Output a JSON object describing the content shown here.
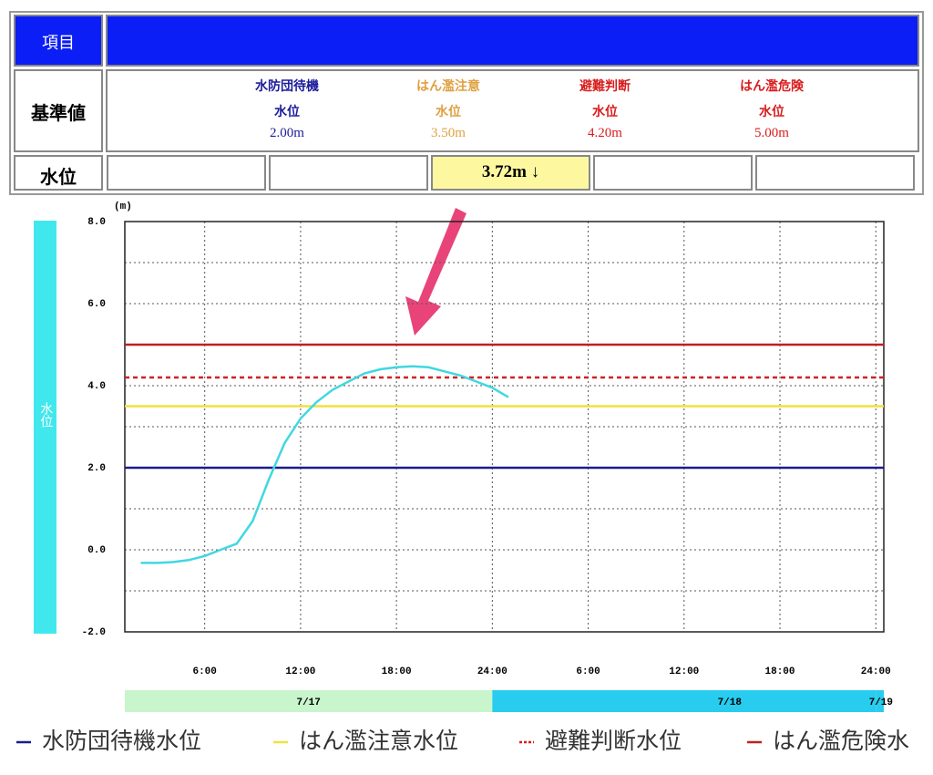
{
  "table": {
    "header": "項目",
    "row_label": "基準値",
    "levels": [
      {
        "name": "水防団待機",
        "sub": "水位",
        "value": "2.00m",
        "color": "#1c1c9c"
      },
      {
        "name": "はん濫注意",
        "sub": "水位",
        "value": "3.50m",
        "color": "#e0a040"
      },
      {
        "name": "避難判断",
        "sub": "水位",
        "value": "4.20m",
        "color": "#d81c1c"
      },
      {
        "name": "はん濫危険",
        "sub": "水位",
        "value": "5.00m",
        "color": "#d81c1c"
      }
    ],
    "current_label": "水位",
    "current_cells": [
      null,
      null,
      "3.72m ↓",
      null,
      null
    ]
  },
  "chart_data": {
    "type": "line",
    "y_unit": "(m)",
    "y_label": "水位",
    "x": [
      2,
      3,
      4,
      5,
      6,
      7,
      8,
      9,
      10,
      11,
      12,
      13,
      14,
      15,
      16,
      17,
      18,
      19,
      20,
      21,
      22,
      23,
      24,
      25
    ],
    "series": [
      {
        "color": "#40d8e0",
        "values": [
          -0.32,
          -0.32,
          -0.3,
          -0.25,
          -0.15,
          0.0,
          0.15,
          0.7,
          1.7,
          2.6,
          3.2,
          3.6,
          3.9,
          4.1,
          4.3,
          4.4,
          4.45,
          4.47,
          4.45,
          4.35,
          4.25,
          4.1,
          3.95,
          3.72
        ]
      }
    ],
    "xlim": [
      1,
      48.5
    ],
    "xticks": [
      {
        "value": 6,
        "label": "6:00"
      },
      {
        "value": 12,
        "label": "12:00"
      },
      {
        "value": 18,
        "label": "18:00"
      },
      {
        "value": 24,
        "label": "24:00"
      },
      {
        "value": 30,
        "label": "6:00"
      },
      {
        "value": 36,
        "label": "12:00"
      },
      {
        "value": 42,
        "label": "18:00"
      },
      {
        "value": 48,
        "label": "24:00"
      }
    ],
    "ylim": [
      -2,
      8
    ],
    "yticks": [
      {
        "value": -2,
        "label": "-2.0"
      },
      {
        "value": 0,
        "label": "0.0"
      },
      {
        "value": 2,
        "label": "2.0"
      },
      {
        "value": 4,
        "label": "4.0"
      },
      {
        "value": 6,
        "label": "6.0"
      },
      {
        "value": 8,
        "label": "8.0"
      }
    ],
    "yminor": [
      -1,
      1,
      3,
      5,
      7
    ],
    "grid": true,
    "thresholds": [
      {
        "name": "水防団待機水位",
        "value": 2.0,
        "color": "#1c1c8c",
        "dashed": false
      },
      {
        "name": "はん濫注意水位",
        "value": 3.5,
        "color": "#f0e040",
        "dashed": false
      },
      {
        "name": "避難判断水位",
        "value": 4.2,
        "color": "#d02020",
        "dashed": true
      },
      {
        "name": "はん濫危険水",
        "value": 5.0,
        "color": "#c02020",
        "dashed": false
      }
    ],
    "dates": [
      {
        "label": "7/17",
        "start": 0,
        "color": "#c8f5cc"
      },
      {
        "label": "7/18",
        "start": 24,
        "color": "#28ccee"
      },
      {
        "label": "7/19",
        "start": 48,
        "color": "#28ccee"
      }
    ]
  }
}
